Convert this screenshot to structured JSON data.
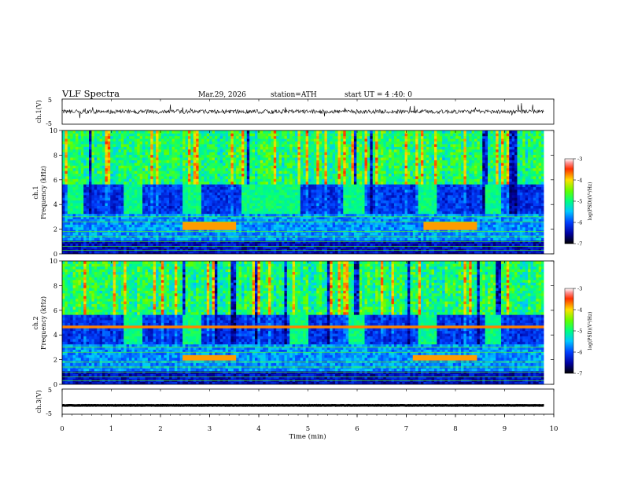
{
  "header": {
    "title": "VLF  Spectra",
    "date": "Mar.29, 2026",
    "station": "station=ATH",
    "start": "start  UT  =   4  :40: 0"
  },
  "chart_data": {
    "type": "heatmap",
    "xlabel": "Time  (min)",
    "xlim": [
      0,
      10
    ],
    "xticks": [
      "0",
      "1",
      "2",
      "3",
      "4",
      "5",
      "6",
      "7",
      "8",
      "9",
      "10"
    ],
    "data_end_min": 9.8,
    "panels": [
      {
        "id": "ch1-waveform",
        "type": "line",
        "ylabel": "ch.1(V)",
        "ylim": [
          -5,
          5
        ],
        "yticks": [
          "5",
          "-5"
        ],
        "trace_level": 0.0
      },
      {
        "id": "ch1-spectrogram",
        "type": "heatmap",
        "ylabel_top": "ch.1",
        "ylabel": "Frequency  (kHz)",
        "ylim": [
          0,
          10
        ],
        "yticks": [
          "0",
          "2",
          "4",
          "6",
          "8",
          "10"
        ],
        "colorbar": {
          "label": "log(PSD)(V²/Hz)",
          "range": [
            -7,
            -3
          ],
          "ticks": [
            "-3",
            "-4",
            "-5",
            "-6",
            "-7"
          ]
        },
        "quiet_windows_min": [
          [
            0.1,
            0.4
          ],
          [
            1.2,
            1.6
          ],
          [
            2.4,
            2.8
          ],
          [
            3.6,
            4.8
          ],
          [
            5.7,
            6.1
          ],
          [
            7.2,
            7.6
          ],
          [
            8.6,
            8.9
          ]
        ],
        "bright_band_khz": 2.2,
        "bright_band_window_min": [
          2.4,
          3.5
        ],
        "bright_band_window2_min": [
          7.3,
          8.4
        ]
      },
      {
        "id": "ch2-spectrogram",
        "type": "heatmap",
        "ylabel_top": "ch.2",
        "ylabel": "Frequency  (kHz)",
        "ylim": [
          0,
          10
        ],
        "yticks": [
          "0",
          "2",
          "4",
          "6",
          "8",
          "10"
        ],
        "colorbar": {
          "label": "log(PSD)(V²/Hz)",
          "range": [
            -7,
            -3
          ],
          "ticks": [
            "-3",
            "-4",
            "-5",
            "-6",
            "-7"
          ]
        },
        "quiet_windows_min": [
          [
            1.2,
            1.6
          ],
          [
            2.4,
            2.8
          ],
          [
            4.6,
            5.0
          ],
          [
            5.8,
            6.1
          ],
          [
            7.2,
            7.6
          ],
          [
            8.6,
            8.9
          ]
        ],
        "bright_band_khz": 2.0,
        "bright_band_window_min": [
          2.4,
          3.5
        ],
        "bright_band_window2_min": [
          7.1,
          8.4
        ],
        "red_line_khz": 4.6
      },
      {
        "id": "ch3-waveform",
        "type": "line",
        "ylabel": "ch.3(V)",
        "ylim": [
          -5,
          5
        ],
        "yticks": [
          "5",
          "-5"
        ],
        "trace_level": -1.5
      }
    ]
  }
}
